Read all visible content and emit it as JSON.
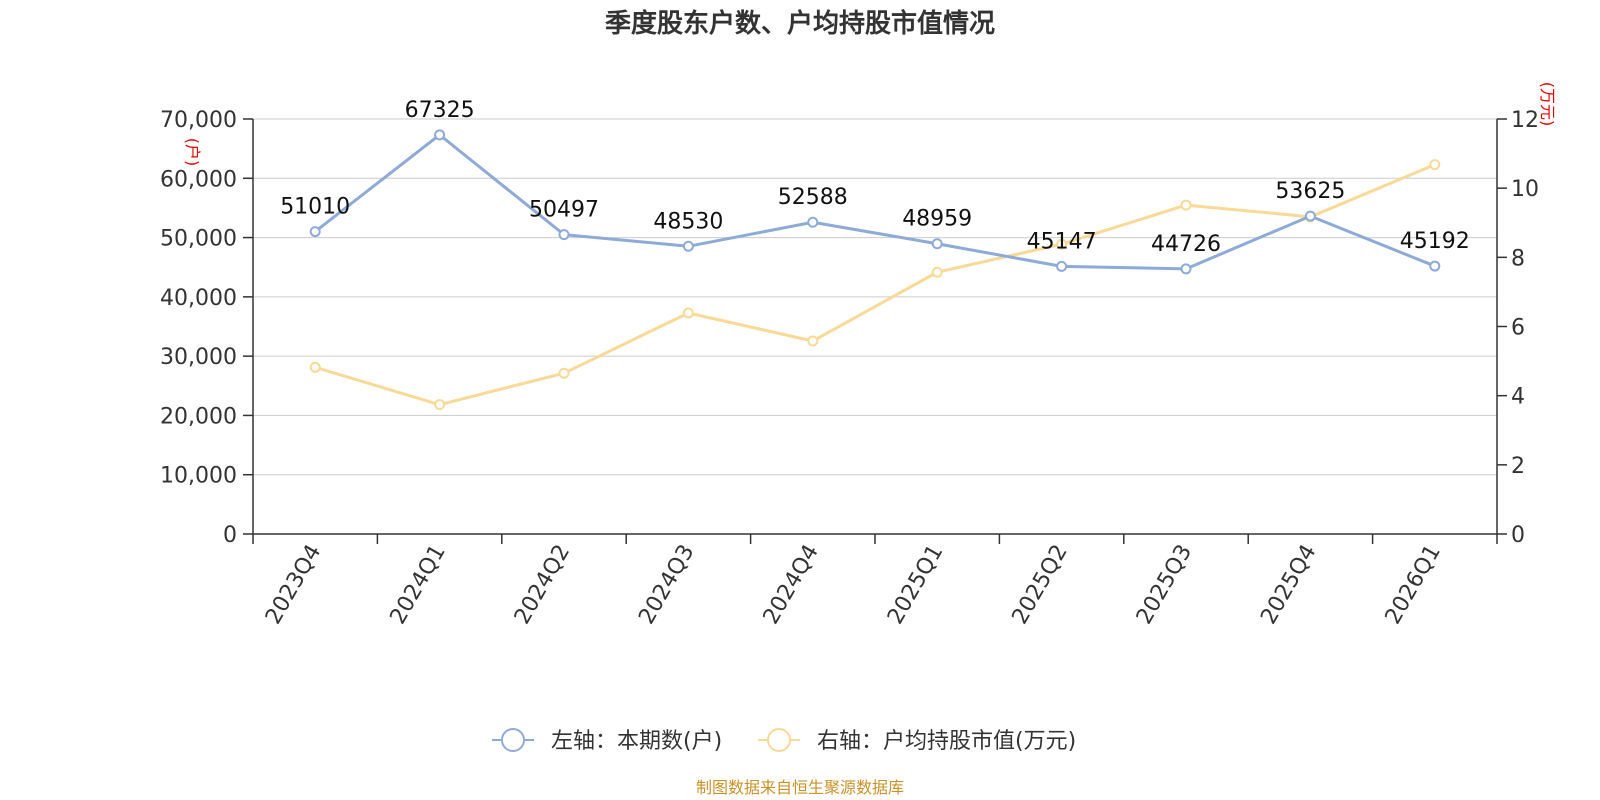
{
  "chart_data": {
    "type": "line",
    "title": "季度股东户数、户均持股市值情况",
    "categories": [
      "2023Q4",
      "2024Q1",
      "2024Q2",
      "2024Q3",
      "2024Q4",
      "2025Q1",
      "2025Q2",
      "2025Q3",
      "2025Q4",
      "2026Q1"
    ],
    "left_axis": {
      "unit": "(户)",
      "ylim": [
        0,
        70000
      ],
      "ticks": [
        "0",
        "10,000",
        "20,000",
        "30,000",
        "40,000",
        "50,000",
        "60,000",
        "70,000"
      ]
    },
    "right_axis": {
      "unit": "(万元)",
      "ylim": [
        0,
        12
      ],
      "ticks": [
        "0",
        "2",
        "4",
        "6",
        "8",
        "10",
        "12"
      ]
    },
    "series": [
      {
        "name": "左轴：本期数(户)",
        "axis": "left",
        "color": "#8eaad6",
        "values": [
          51010,
          67325,
          50497,
          48530,
          52588,
          48959,
          45147,
          44726,
          53625,
          45192
        ],
        "labels": [
          "51010",
          "67325",
          "50497",
          "48530",
          "52588",
          "48959",
          "45147",
          "44726",
          "53625",
          "45192"
        ]
      },
      {
        "name": "右轴：户均持股市值(万元)",
        "axis": "right",
        "color": "#f8d996",
        "values": [
          4.82,
          3.74,
          4.65,
          6.39,
          5.58,
          7.57,
          8.38,
          9.51,
          9.17,
          10.68
        ]
      }
    ],
    "grid": true,
    "legend_position": "bottom"
  },
  "source_text": "制图数据来自恒生聚源数据库"
}
